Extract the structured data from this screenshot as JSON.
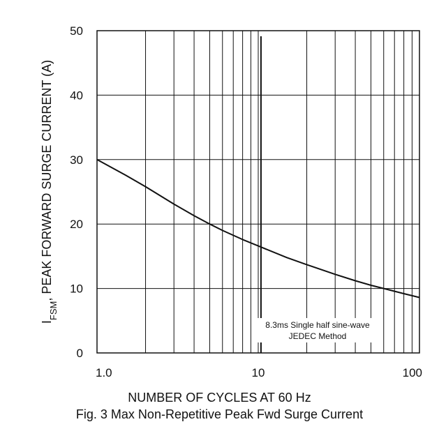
{
  "chart_data": {
    "type": "line",
    "title": "",
    "xlabel": "NUMBER OF CYCLES AT 60 Hz",
    "ylabel": "I_FSM, PEAK FORWARD SURGE CURRENT (A)",
    "ylabel_main": "I",
    "ylabel_sub": "FSM",
    "ylabel_rest": ", PEAK FORWARD SURGE CURRENT (A)",
    "x_scale": "log",
    "xlim": [
      1,
      100
    ],
    "ylim": [
      0,
      50
    ],
    "grid": true,
    "x_tick_labels": [
      "1.0",
      "10",
      "100"
    ],
    "x_tick_values": [
      1,
      10,
      100
    ],
    "y_tick_labels": [
      "0",
      "10",
      "20",
      "30",
      "40",
      "50"
    ],
    "y_tick_values": [
      0,
      10,
      20,
      30,
      40,
      50
    ],
    "series": [
      {
        "x": [
          1,
          1.5,
          2,
          3,
          4,
          5,
          6,
          8,
          10,
          15,
          20,
          30,
          40,
          50,
          60,
          80,
          100
        ],
        "y": [
          30,
          27.6,
          25.8,
          23.1,
          21.3,
          20.0,
          19.0,
          17.6,
          16.6,
          14.8,
          13.7,
          12.2,
          11.2,
          10.5,
          10.0,
          9.2,
          8.6
        ]
      }
    ],
    "annotations": {
      "marker_x": 10.4,
      "text_line1": "8.3ms Single half sine-wave",
      "text_line2": "JEDEC Method"
    }
  },
  "caption": {
    "xlabel": "NUMBER OF CYCLES AT 60 Hz",
    "figure": "Fig. 3  Max Non-Repetitive Peak Fwd Surge Current"
  }
}
